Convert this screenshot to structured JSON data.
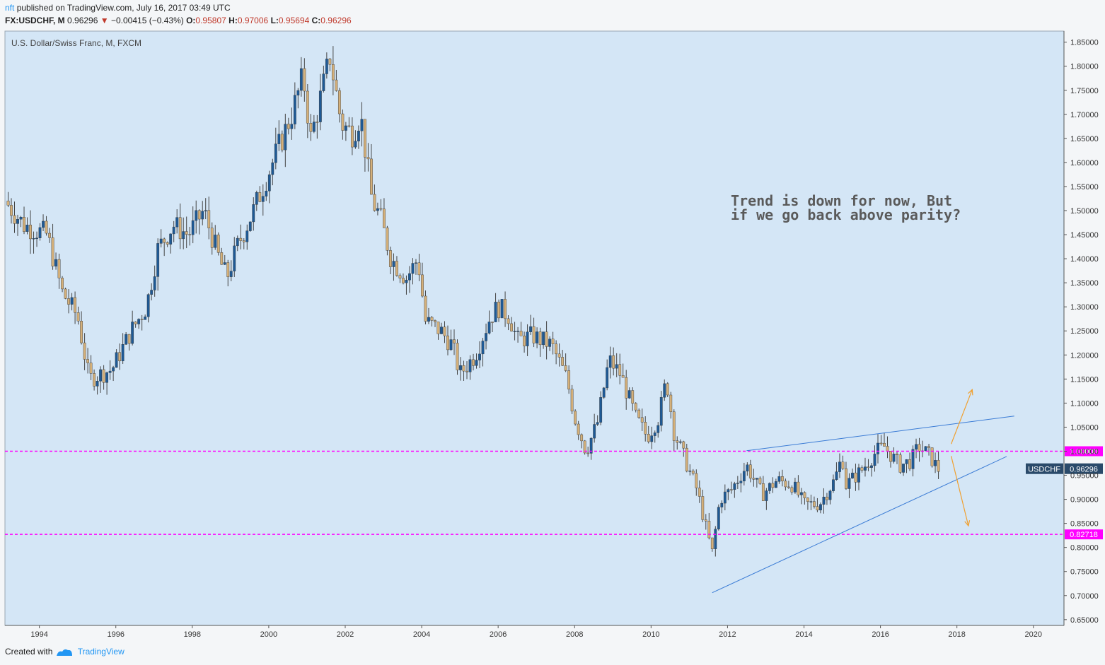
{
  "header": {
    "user": "nft",
    "published": "published on TradingView.com, July 16, 2017 03:49 UTC",
    "symbol": "FX:USDCHF, M",
    "last": "0.96296",
    "change": "−0.00415 (−0.43%)",
    "o_label": "O:",
    "o": "0.95807",
    "h_label": "H:",
    "h": "0.97006",
    "l_label": "L:",
    "l": "0.95694",
    "c_label": "C:",
    "c": "0.96296"
  },
  "footer": {
    "created_with": "Created with",
    "brand": "TradingView"
  },
  "colors": {
    "panel": "#d4e6f6",
    "bull": "#1e5a96",
    "bear": "#d4b07a",
    "hline": "#ff00ff",
    "trendline": "#3a7bd5",
    "arrow": "#f0a030",
    "annotation": "#5a5a5a"
  },
  "chart_data": {
    "type": "candlestick",
    "title": "U.S. Dollar/Swiss Franc, M, FXCM",
    "xlim": [
      1993.1,
      2020.8
    ],
    "ylim": [
      0.638,
      1.873
    ],
    "x_ticks": [
      "1994",
      "1996",
      "1998",
      "2000",
      "2002",
      "2004",
      "2006",
      "2008",
      "2010",
      "2012",
      "2014",
      "2016",
      "2018",
      "2020"
    ],
    "y_ticks": [
      "0.65000",
      "0.70000",
      "0.75000",
      "0.80000",
      "0.85000",
      "0.90000",
      "0.95000",
      "1.00000",
      "1.05000",
      "1.10000",
      "1.15000",
      "1.20000",
      "1.25000",
      "1.30000",
      "1.35000",
      "1.40000",
      "1.45000",
      "1.50000",
      "1.55000",
      "1.60000",
      "1.65000",
      "1.70000",
      "1.75000",
      "1.80000",
      "1.85000"
    ],
    "close_path": [
      [
        1993.1,
        1.52
      ],
      [
        1993.6,
        1.47
      ],
      [
        1994.2,
        1.45
      ],
      [
        1994.6,
        1.33
      ],
      [
        1995.0,
        1.28
      ],
      [
        1995.3,
        1.15
      ],
      [
        1995.9,
        1.17
      ],
      [
        1996.4,
        1.25
      ],
      [
        1996.8,
        1.3
      ],
      [
        1997.1,
        1.42
      ],
      [
        1997.5,
        1.47
      ],
      [
        1997.9,
        1.45
      ],
      [
        1998.3,
        1.5
      ],
      [
        1998.7,
        1.4
      ],
      [
        1998.9,
        1.36
      ],
      [
        1999.2,
        1.43
      ],
      [
        1999.6,
        1.5
      ],
      [
        2000.0,
        1.58
      ],
      [
        2000.3,
        1.64
      ],
      [
        2000.6,
        1.7
      ],
      [
        2000.9,
        1.78
      ],
      [
        2001.1,
        1.65
      ],
      [
        2001.4,
        1.75
      ],
      [
        2001.6,
        1.82
      ],
      [
        2001.9,
        1.68
      ],
      [
        2002.2,
        1.66
      ],
      [
        2002.4,
        1.7
      ],
      [
        2002.7,
        1.52
      ],
      [
        2002.9,
        1.49
      ],
      [
        2003.2,
        1.4
      ],
      [
        2003.6,
        1.36
      ],
      [
        2003.9,
        1.4
      ],
      [
        2004.1,
        1.27
      ],
      [
        2004.5,
        1.25
      ],
      [
        2004.8,
        1.22
      ],
      [
        2005.0,
        1.16
      ],
      [
        2005.4,
        1.2
      ],
      [
        2005.8,
        1.28
      ],
      [
        2006.0,
        1.3
      ],
      [
        2006.3,
        1.28
      ],
      [
        2006.5,
        1.23
      ],
      [
        2006.9,
        1.24
      ],
      [
        2007.4,
        1.22
      ],
      [
        2007.8,
        1.15
      ],
      [
        2008.0,
        1.07
      ],
      [
        2008.3,
        1.0
      ],
      [
        2008.6,
        1.06
      ],
      [
        2008.9,
        1.19
      ],
      [
        2009.2,
        1.16
      ],
      [
        2009.6,
        1.07
      ],
      [
        2009.9,
        1.03
      ],
      [
        2010.2,
        1.07
      ],
      [
        2010.4,
        1.15
      ],
      [
        2010.6,
        1.04
      ],
      [
        2010.9,
        0.98
      ],
      [
        2011.2,
        0.92
      ],
      [
        2011.5,
        0.82
      ],
      [
        2011.6,
        0.79
      ],
      [
        2011.8,
        0.9
      ],
      [
        2012.1,
        0.92
      ],
      [
        2012.5,
        0.97
      ],
      [
        2012.9,
        0.91
      ],
      [
        2013.3,
        0.94
      ],
      [
        2013.7,
        0.93
      ],
      [
        2014.0,
        0.89
      ],
      [
        2014.4,
        0.89
      ],
      [
        2014.8,
        0.94
      ],
      [
        2015.0,
        0.99
      ],
      [
        2015.1,
        0.93
      ],
      [
        2015.5,
        0.96
      ],
      [
        2015.9,
        1.0
      ],
      [
        2016.1,
        1.01
      ],
      [
        2016.5,
        0.97
      ],
      [
        2016.8,
        0.98
      ],
      [
        2017.0,
        1.01
      ],
      [
        2017.3,
        0.99
      ],
      [
        2017.5,
        0.96296
      ]
    ],
    "horizontal_lines": [
      {
        "y": 1.0,
        "label": "1.00000"
      },
      {
        "y": 0.82718,
        "label": "0.82718"
      }
    ],
    "trendlines": [
      {
        "from": [
          2011.6,
          0.706
        ],
        "to": [
          2019.3,
          0.989
        ]
      },
      {
        "from": [
          2012.5,
          1.001
        ],
        "to": [
          2019.5,
          1.073
        ]
      }
    ],
    "arrows": [
      {
        "from": [
          2017.85,
          1.015
        ],
        "to": [
          2018.4,
          1.128
        ]
      },
      {
        "from": [
          2017.85,
          0.99
        ],
        "to": [
          2018.3,
          0.845
        ]
      }
    ],
    "price_tag": {
      "symbol": "USDCHF",
      "value": "0.96296",
      "y": 0.96296
    },
    "annotation": [
      "Trend is down for now, But",
      "if we go back above parity?"
    ]
  }
}
